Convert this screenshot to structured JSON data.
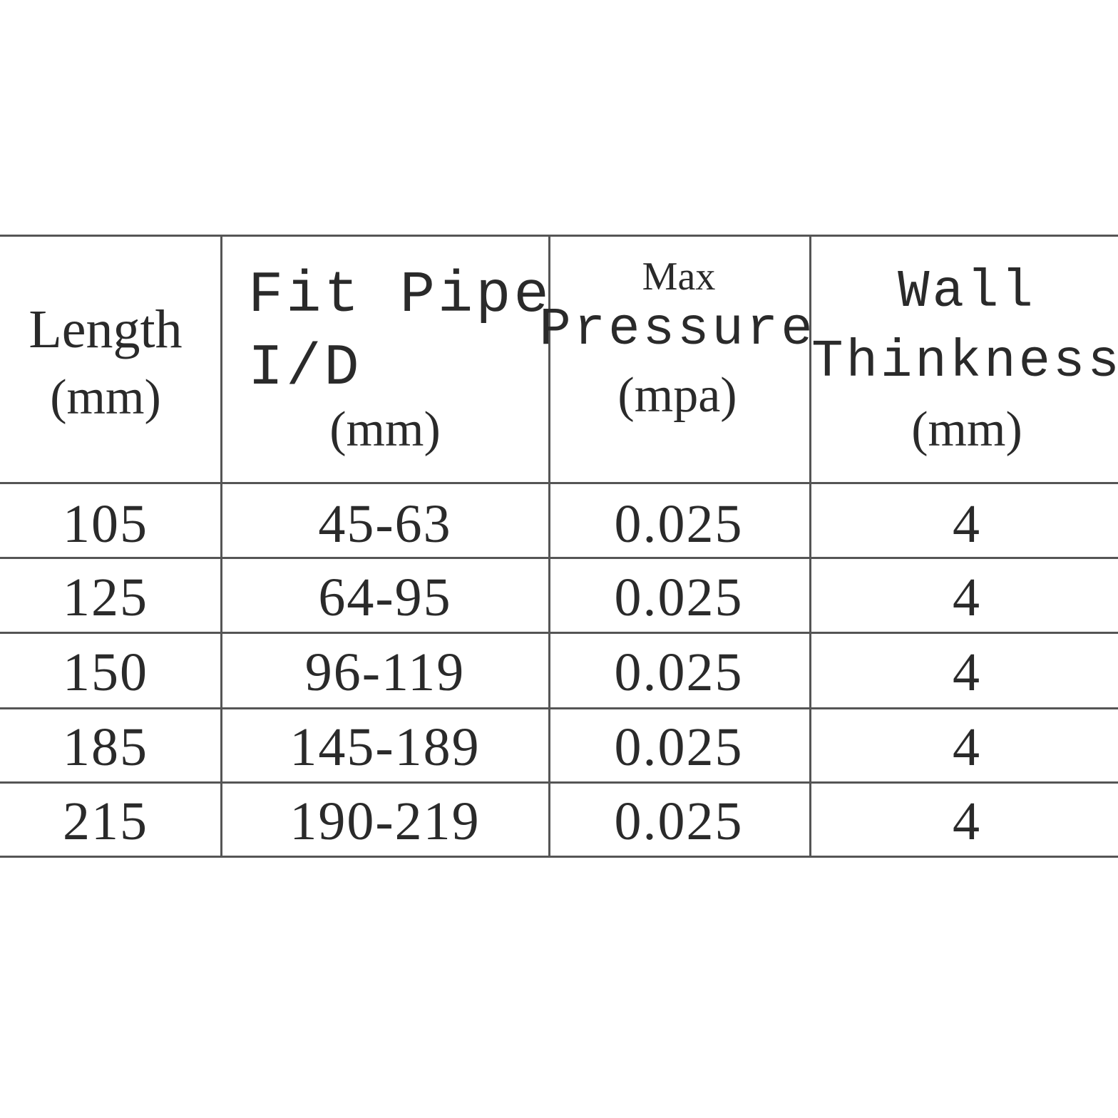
{
  "table": {
    "header": [
      [
        "Length",
        "(mm)"
      ],
      [
        "Fit Pipe",
        "I/D",
        "(mm)"
      ],
      [
        "Max",
        "Pressure",
        "(mpa)"
      ],
      [
        "Wall",
        "Thinkness",
        "(mm)"
      ]
    ],
    "rows": [
      [
        "105",
        "45-63",
        "0.025",
        "4"
      ],
      [
        "125",
        "64-95",
        "0.025",
        "4"
      ],
      [
        "150",
        "96-119",
        "0.025",
        "4"
      ],
      [
        "185",
        "145-189",
        "0.025",
        "4"
      ],
      [
        "215",
        "190-219",
        "0.025",
        "4"
      ]
    ]
  }
}
